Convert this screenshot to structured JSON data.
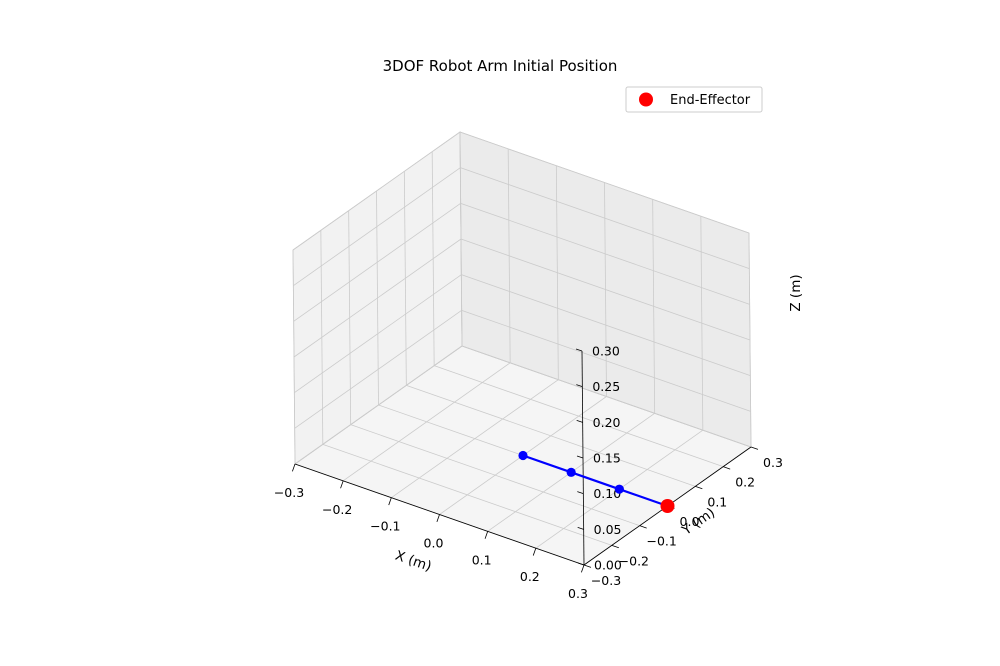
{
  "chart_data": {
    "type": "line",
    "projection": "3d",
    "title": "3DOF Robot Arm Initial Position",
    "xlabel": "X (m)",
    "ylabel": "Y (m)",
    "zlabel": "Z (m)",
    "xlim": [
      -0.3,
      0.3
    ],
    "ylim": [
      -0.3,
      0.3
    ],
    "zlim": [
      0.0,
      0.3
    ],
    "x_ticks": [
      "−0.3",
      "−0.2",
      "−0.1",
      "0.0",
      "0.1",
      "0.2",
      "0.3"
    ],
    "y_ticks": [
      "−0.3",
      "−0.2",
      "−0.1",
      "0.0",
      "0.1",
      "0.2",
      "0.3"
    ],
    "z_ticks": [
      "0.00",
      "0.05",
      "0.10",
      "0.15",
      "0.20",
      "0.25",
      "0.30"
    ],
    "grid": true,
    "legend_position": "top-right",
    "series": [
      {
        "kind": "arm-links",
        "color": "#0000ff",
        "points": [
          {
            "x": 0.0,
            "y": 0.0,
            "z": 0.0
          },
          {
            "x": 0.1,
            "y": 0.0,
            "z": 0.0
          },
          {
            "x": 0.2,
            "y": 0.0,
            "z": 0.0
          },
          {
            "x": 0.3,
            "y": 0.0,
            "z": 0.0
          }
        ]
      },
      {
        "kind": "end-effector",
        "name": "End-Effector",
        "color": "#ff0000",
        "points": [
          {
            "x": 0.3,
            "y": 0.0,
            "z": 0.0
          }
        ]
      }
    ]
  },
  "colors": {
    "pane_back": "#ebebeb",
    "pane_side": "#f2f2f2",
    "pane_floor": "#f5f5f5",
    "grid": "#cbcbcb",
    "arm": "#0000ff",
    "end_effector": "#ff0000"
  }
}
